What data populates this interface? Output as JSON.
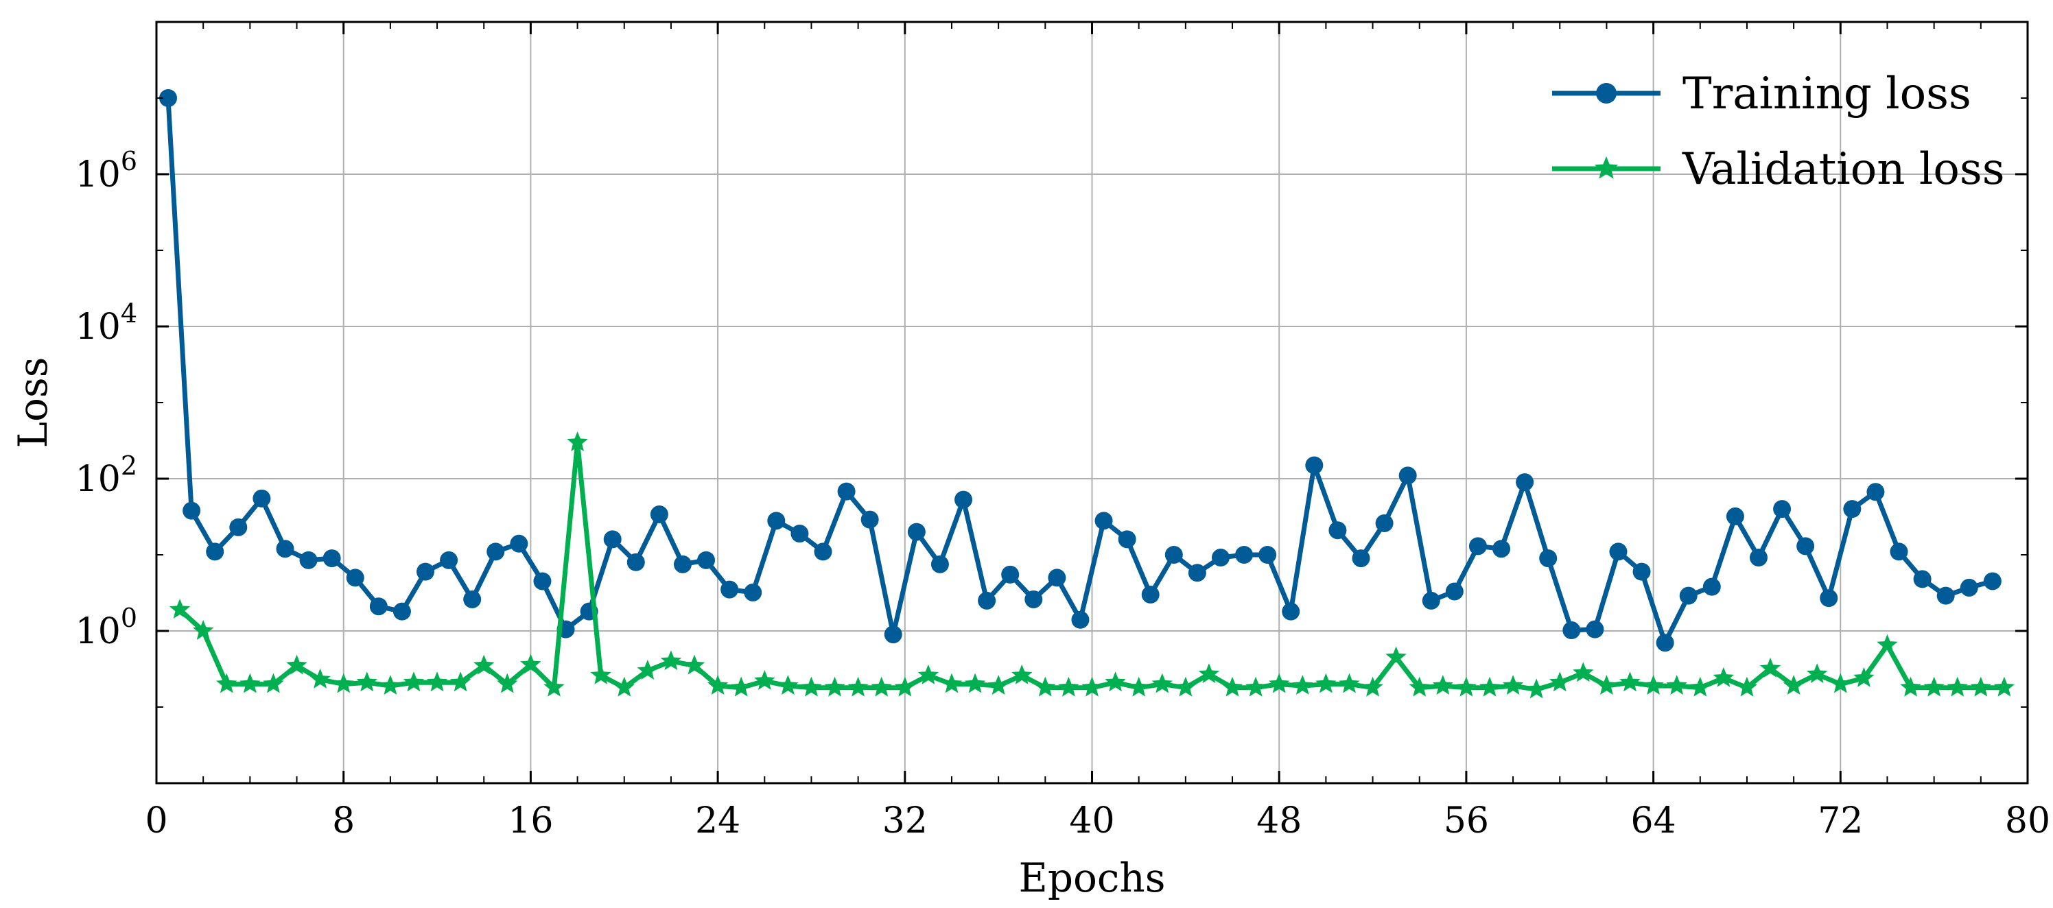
{
  "chart_data": {
    "type": "line",
    "title": "",
    "xlabel": "Epochs",
    "ylabel": "Loss",
    "xlim": [
      0,
      80
    ],
    "xticks": [
      0,
      8,
      16,
      24,
      32,
      40,
      48,
      56,
      64,
      72,
      80
    ],
    "xtick_labels": [
      "0",
      "8",
      "16",
      "24",
      "32",
      "40",
      "48",
      "56",
      "64",
      "72",
      "80"
    ],
    "yscale": "log",
    "ylim": [
      0.01,
      100000000
    ],
    "yticks": [
      1,
      100,
      10000,
      1000000
    ],
    "ytick_labels": [
      {
        "base": "10",
        "exp": "0"
      },
      {
        "base": "10",
        "exp": "2"
      },
      {
        "base": "10",
        "exp": "4"
      },
      {
        "base": "10",
        "exp": "6"
      }
    ],
    "grid": true,
    "legend_position": "top-right",
    "series": [
      {
        "name": "Training loss",
        "color": "#005b96",
        "marker": "circle",
        "x": [
          0.5,
          1.5,
          2.5,
          3.5,
          4.5,
          5.5,
          6.5,
          7.5,
          8.5,
          9.5,
          10.5,
          11.5,
          12.5,
          13.5,
          14.5,
          15.5,
          16.5,
          17.5,
          18.5,
          19.5,
          20.5,
          21.5,
          22.5,
          23.5,
          24.5,
          25.5,
          26.5,
          27.5,
          28.5,
          29.5,
          30.5,
          31.5,
          32.5,
          33.5,
          34.5,
          35.5,
          36.5,
          37.5,
          38.5,
          39.5,
          40.5,
          41.5,
          42.5,
          43.5,
          44.5,
          45.5,
          46.5,
          47.5,
          48.5,
          49.5,
          50.5,
          51.5,
          52.5,
          53.5,
          54.5,
          55.5,
          56.5,
          57.5,
          58.5,
          59.5,
          60.5,
          61.5,
          62.5,
          63.5,
          64.5,
          65.5,
          66.5,
          67.5,
          68.5,
          69.5,
          70.5,
          71.5,
          72.5,
          73.5,
          74.5,
          75.5,
          76.5,
          77.5,
          78.5
        ],
        "y": [
          10000000,
          38,
          11,
          23,
          55,
          12,
          8.5,
          9,
          5,
          2.1,
          1.8,
          6,
          8.5,
          2.6,
          11,
          14,
          4.5,
          1.05,
          1.8,
          16,
          8,
          34,
          7.5,
          8.5,
          3.5,
          3.2,
          28,
          19,
          11,
          68,
          29,
          0.9,
          20,
          7.5,
          53,
          2.5,
          5.5,
          2.6,
          5,
          1.4,
          28,
          16,
          3,
          10,
          5.8,
          9.2,
          10,
          10,
          1.8,
          150,
          21,
          9,
          26,
          110,
          2.5,
          3.3,
          13,
          12,
          90,
          9,
          1.02,
          1.05,
          11,
          6,
          0.7,
          2.9,
          3.8,
          32,
          9.2,
          40,
          13,
          2.7,
          40,
          67,
          11,
          4.8,
          2.9,
          3.7,
          4.5
        ]
      },
      {
        "name": "Validation loss",
        "color": "#00b050",
        "marker": "star",
        "x": [
          1,
          2,
          3,
          4,
          5,
          6,
          7,
          8,
          9,
          10,
          11,
          12,
          13,
          14,
          15,
          16,
          17,
          18,
          19,
          20,
          21,
          22,
          23,
          24,
          25,
          26,
          27,
          28,
          29,
          30,
          31,
          32,
          33,
          34,
          35,
          36,
          37,
          38,
          39,
          40,
          41,
          42,
          43,
          44,
          45,
          46,
          47,
          48,
          49,
          50,
          51,
          52,
          53,
          54,
          55,
          56,
          57,
          58,
          59,
          60,
          61,
          62,
          63,
          64,
          65,
          66,
          67,
          68,
          69,
          70,
          71,
          72,
          73,
          74,
          75,
          76,
          77,
          78,
          79
        ],
        "y": [
          1.9,
          1.0,
          0.2,
          0.2,
          0.2,
          0.35,
          0.23,
          0.2,
          0.21,
          0.19,
          0.21,
          0.21,
          0.21,
          0.35,
          0.2,
          0.36,
          0.18,
          300,
          0.26,
          0.18,
          0.3,
          0.4,
          0.35,
          0.19,
          0.18,
          0.22,
          0.19,
          0.18,
          0.18,
          0.18,
          0.18,
          0.18,
          0.26,
          0.2,
          0.2,
          0.19,
          0.26,
          0.18,
          0.18,
          0.18,
          0.21,
          0.18,
          0.2,
          0.18,
          0.27,
          0.18,
          0.18,
          0.2,
          0.19,
          0.2,
          0.2,
          0.18,
          0.45,
          0.18,
          0.19,
          0.18,
          0.18,
          0.19,
          0.17,
          0.21,
          0.28,
          0.19,
          0.21,
          0.19,
          0.19,
          0.18,
          0.24,
          0.18,
          0.32,
          0.19,
          0.27,
          0.2,
          0.24,
          0.65,
          0.18,
          0.18,
          0.18,
          0.18,
          0.18
        ]
      }
    ]
  }
}
